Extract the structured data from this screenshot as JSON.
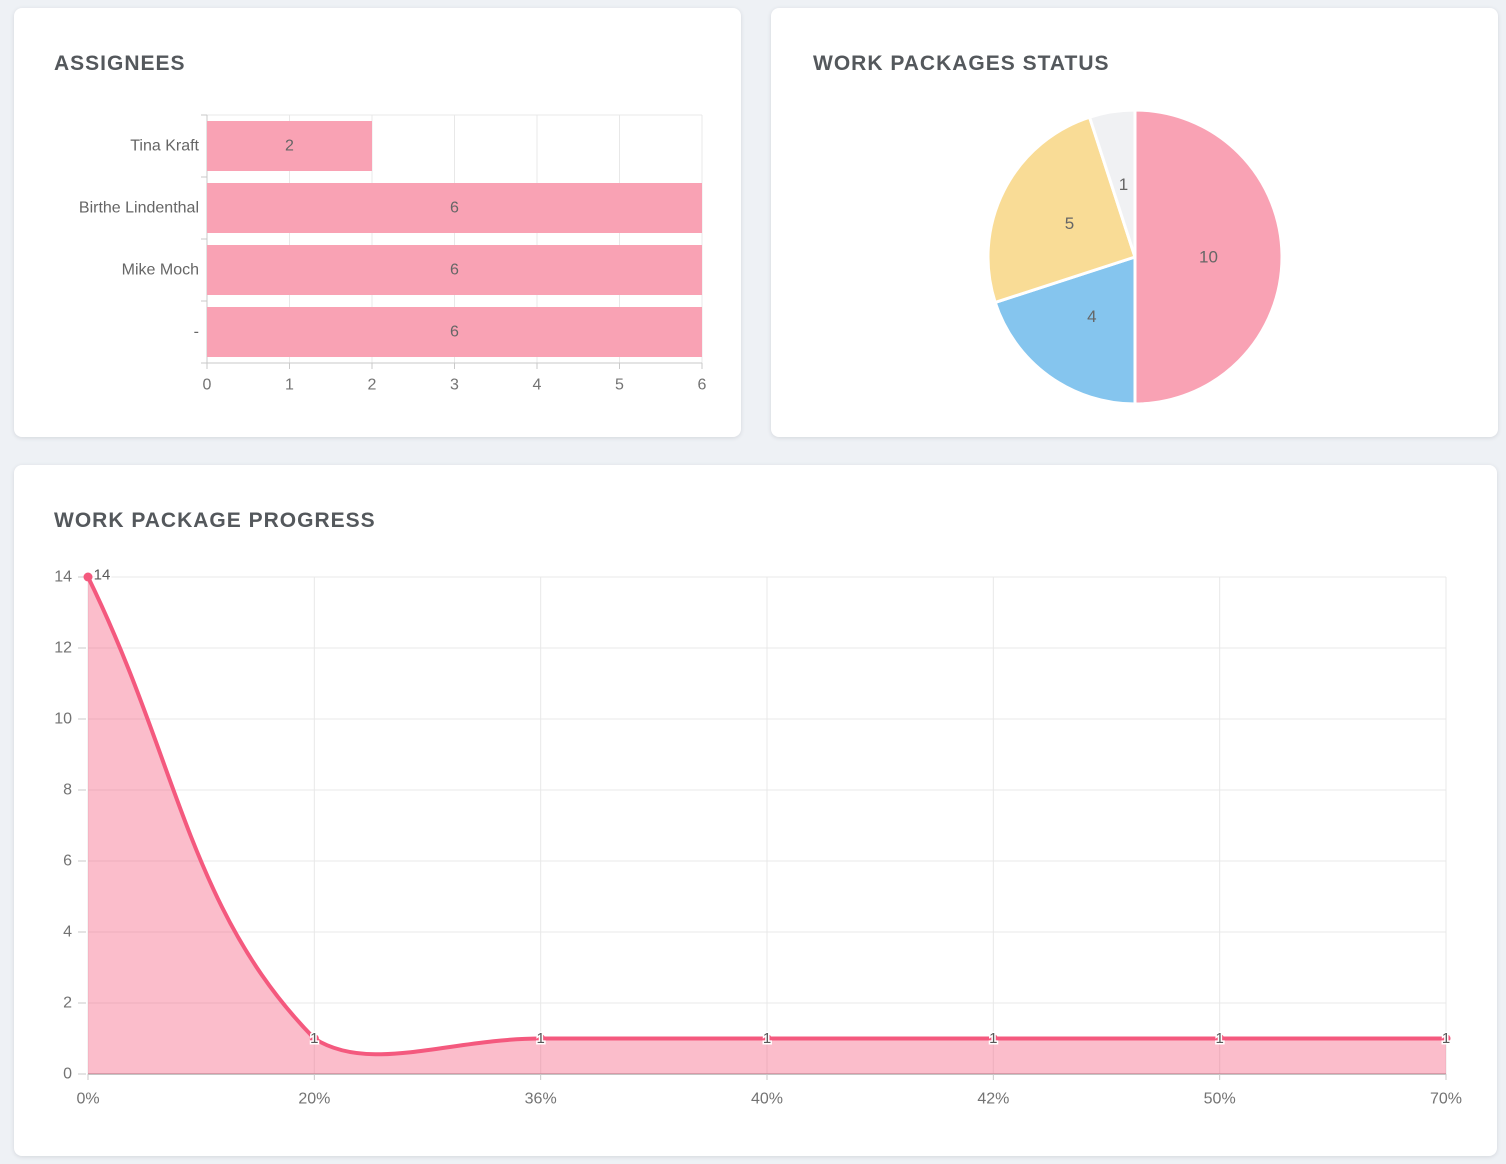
{
  "colors": {
    "page_bg": "#eef1f5",
    "card_bg": "#ffffff",
    "title_text": "#54585c",
    "axis_text": "#737373",
    "data_label_text": "#666666",
    "grid": "#e8e8e8",
    "axis_line": "#c9c9c9",
    "baseline": "#b0b0b0",
    "bar_pink": "#f9a2b4",
    "pie_pink": "#f9a2b4",
    "pie_blue": "#85c5ee",
    "pie_yellow": "#f9dc96",
    "pie_grey": "#f0f1f3",
    "line_pink": "#f4597e",
    "area_fill": "rgba(244,89,126,0.40)"
  },
  "chart_data": [
    {
      "id": "assignees",
      "type": "bar",
      "orientation": "horizontal",
      "title": "ASSIGNEES",
      "categories": [
        "Tina Kraft",
        "Birthe Lindenthal",
        "Mike Moch",
        "-"
      ],
      "values": [
        2,
        6,
        6,
        6
      ],
      "data_labels": [
        "2",
        "6",
        "6",
        "6"
      ],
      "xlim": [
        0,
        6
      ],
      "xticks": [
        0,
        1,
        2,
        3,
        4,
        5,
        6
      ],
      "bar_color": "#f9a2b4",
      "grid": true,
      "legend": "none"
    },
    {
      "id": "work-packages-status",
      "type": "pie",
      "title": "WORK PACKAGES STATUS",
      "slices": [
        {
          "label": "10",
          "value": 10,
          "color": "#f9a2b4"
        },
        {
          "label": "4",
          "value": 4,
          "color": "#85c5ee"
        },
        {
          "label": "5",
          "value": 5,
          "color": "#f9dc96"
        },
        {
          "label": "1",
          "value": 1,
          "color": "#f0f1f3"
        }
      ],
      "total": 20,
      "start_angle": "top",
      "direction": "clockwise",
      "slice_border_color": "#ffffff",
      "legend": "none"
    },
    {
      "id": "work-package-progress",
      "type": "area",
      "title": "WORK PACKAGE PROGRESS",
      "x": [
        "0%",
        "20%",
        "36%",
        "40%",
        "42%",
        "50%",
        "70%"
      ],
      "values": [
        14,
        1,
        1,
        1,
        1,
        1,
        1
      ],
      "data_labels": [
        "14",
        "1",
        "1",
        "1",
        "1",
        "1",
        "1"
      ],
      "ylim": [
        0,
        14
      ],
      "yticks": [
        0,
        2,
        4,
        6,
        8,
        10,
        12,
        14
      ],
      "line_color": "#f4597e",
      "fill_color": "rgba(244,89,126,0.40)",
      "smoothing": "bezier",
      "grid": true,
      "legend": "none"
    }
  ]
}
